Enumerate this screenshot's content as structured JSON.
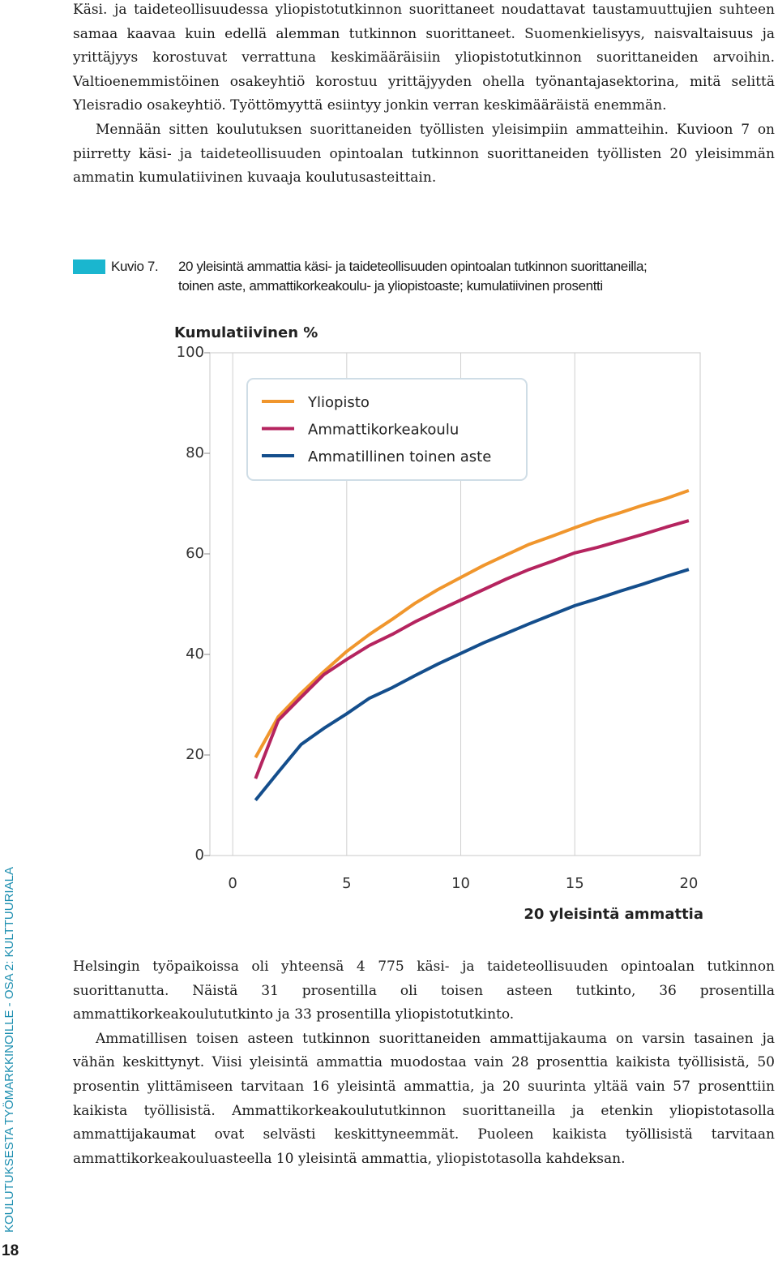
{
  "paragraphs_top": [
    "Käsi. ja taideteollisuudessa yliopistotutkinnon suorittaneet noudattavat taustamuuttujien suhteen samaa kaavaa kuin edellä alemman tutkinnon suorittaneet. Suomenkielisyys, naisvaltaisuus ja yrittäjyys korostuvat verrattuna keskimääräisiin yliopistotutkinnon suorittaneiden arvoihin. Valtioenemmistöinen osakeyhtiö korostuu yrittäjyyden ohella työnantajasektorina, mitä selittä Yleisradio osakeyhtiö. Työttömyyttä esiintyy jonkin verran keskimääräistä enemmän.",
    "Mennään sitten koulutuksen suorittaneiden työllisten yleisimpiin ammatteihin. Kuvioon 7 on piirretty käsi- ja taideteollisuuden opintoalan tutkinnon suorittaneiden työllisten 20 yleisimmän ammatin kumulatiivinen kuvaaja koulutusasteittain."
  ],
  "figure": {
    "label": "Kuvio 7.",
    "caption_lines": [
      "20 yleisintä ammattia käsi- ja taideteollisuuden opintoalan tutkinnon suorittaneilla;",
      "toinen aste, ammattikorkeakoulu- ja yliopistoaste; kumulatiivinen prosentti"
    ]
  },
  "chart_data": {
    "type": "line",
    "y_label": "Kumulatiivinen %",
    "x_label": "20 yleisintä ammattia",
    "x": [
      1,
      2,
      3,
      4,
      5,
      6,
      7,
      8,
      9,
      10,
      11,
      12,
      13,
      14,
      15,
      16,
      17,
      18,
      19,
      20
    ],
    "xlim": [
      -1,
      20.5
    ],
    "xticks": [
      0,
      5,
      10,
      15,
      20
    ],
    "ylim": [
      0,
      100
    ],
    "yticks": [
      0,
      20,
      40,
      60,
      80,
      100
    ],
    "grid": "x",
    "legend": "upper left",
    "series": [
      {
        "name": "Yliopisto",
        "color": "#f0962d",
        "values": [
          19.5,
          27.6,
          32.3,
          36.6,
          40.6,
          44,
          47,
          50.2,
          52.9,
          55.3,
          57.7,
          59.8,
          61.9,
          63.5,
          65.2,
          66.8,
          68.2,
          69.7,
          71,
          72.6
        ]
      },
      {
        "name": "Ammattikorkeakoulu",
        "color": "#b5245f",
        "values": [
          15.3,
          26.9,
          31.5,
          36,
          39,
          41.8,
          44,
          46.5,
          48.7,
          50.8,
          52.9,
          55,
          56.9,
          58.5,
          60.2,
          61.3,
          62.6,
          63.9,
          65.3,
          66.6
        ]
      },
      {
        "name": "Ammatillinen toinen aste",
        "color": "#144e8c",
        "values": [
          11,
          16.6,
          22.1,
          25.3,
          28.2,
          31.3,
          33.4,
          35.8,
          38.1,
          40.2,
          42.3,
          44.2,
          46.1,
          47.9,
          49.7,
          51.1,
          52.6,
          54,
          55.5,
          56.9
        ]
      }
    ]
  },
  "paragraphs_bottom": [
    "Helsingin työpaikoissa oli yhteensä 4 775 käsi- ja taideteollisuuden opintoalan tutkinnon suorittanutta. Näistä 31 prosentilla oli toisen asteen tutkinto, 36 prosentilla ammattikorkeakoulututkinto ja 33 prosentilla yliopistotutkinto.",
    "Ammatillisen toisen asteen tutkinnon suorittaneiden ammattijakauma on varsin tasainen ja vähän keskittynyt. Viisi yleisintä ammattia muodostaa vain 28 prosenttia kaikista työllisistä, 50 prosentin ylittämiseen tarvitaan 16 yleisintä ammattia, ja 20 suurinta yltää vain 57 prosenttiin kaikista työllisistä. Ammattikorkeakoulututkinnon suorittaneilla ja etenkin yliopistotasolla ammattijakaumat ovat selvästi keskittyneemmät. Puoleen kaikista työllisistä tarvitaan ammattikorkeakouluasteella 10 yleisintä ammattia, yliopistotasolla kahdeksan."
  ],
  "sidebar": {
    "running_title": "KOULUTUKSESTA TYÖMARKKINOILLE - OSA 2: KULTTUURIALA",
    "page_number": "18"
  }
}
